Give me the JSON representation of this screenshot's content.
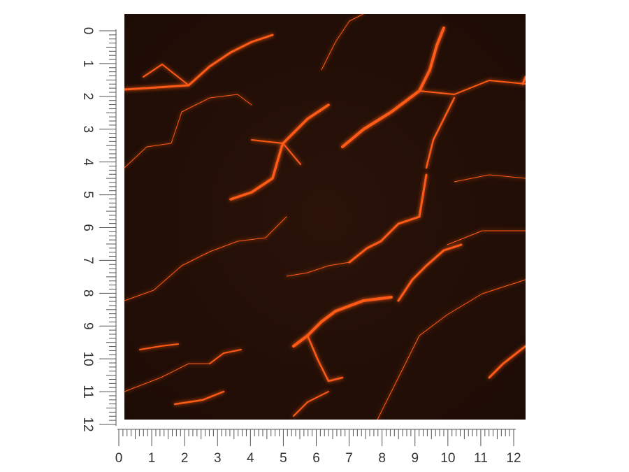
{
  "vertical_ruler": {
    "labels": [
      0,
      1,
      2,
      3,
      4,
      5,
      6,
      7,
      8,
      9,
      10,
      11,
      12
    ]
  },
  "horizontal_ruler": {
    "labels": [
      0,
      1,
      2,
      3,
      4,
      5,
      6,
      7,
      8,
      9,
      10,
      11,
      12
    ]
  }
}
